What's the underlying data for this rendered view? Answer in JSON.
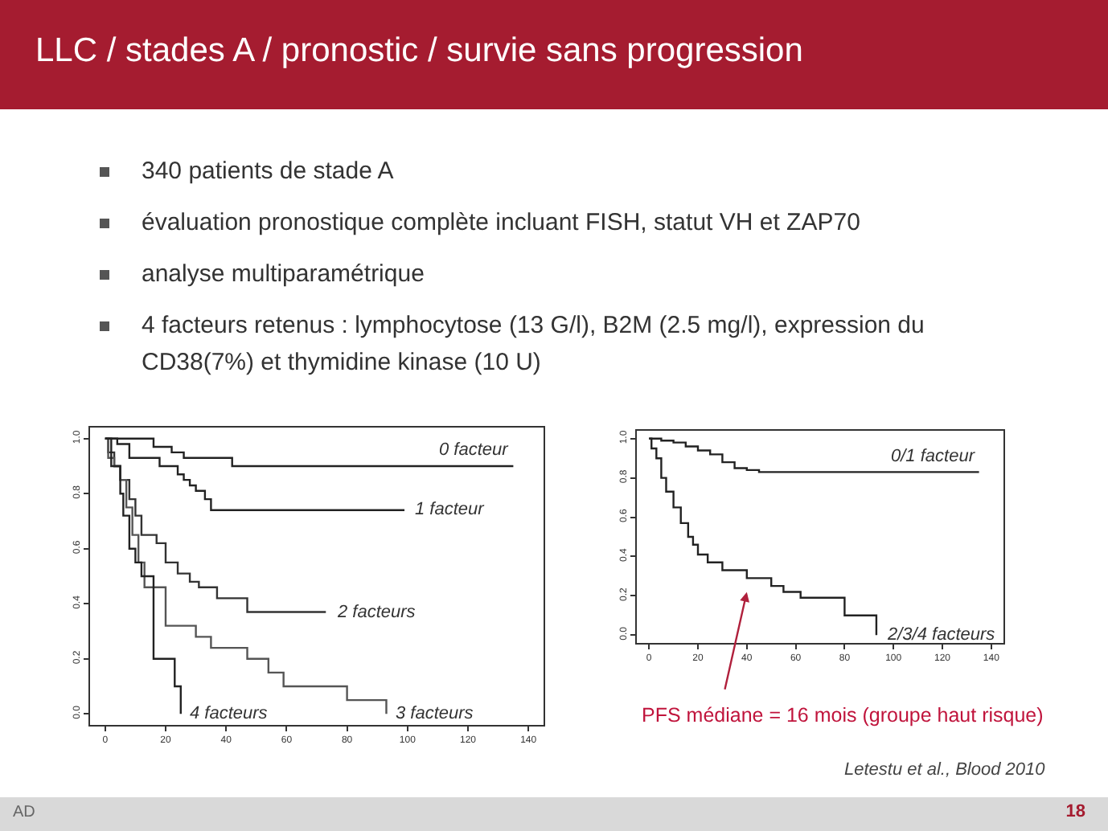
{
  "chart_data": [
    {
      "type": "step",
      "title": "LLC / stades A / pronostic / survie sans progression",
      "annotations": [
        "340 patients de stade A",
        "évaluation pronostique complète incluant FISH, statut VH et ZAP70",
        "analyse multiparamétrique",
        "4 facteurs retenus : lymphocytose (13 G/l), B2M (2.5 mg/l), expression du CD38(7%) et thymidine kinase (10 U)",
        "AD",
        "18"
      ],
      "xlim": [
        -5,
        145
      ],
      "ylim": [
        -0.04,
        1.04
      ],
      "xticks": [
        0,
        20,
        40,
        60,
        80,
        100,
        120,
        140
      ],
      "yticks": [
        {
          "value": 0,
          "label": "0.0"
        },
        {
          "value": 0.2,
          "label": "0.2"
        },
        {
          "value": 0.4,
          "label": "0.4"
        },
        {
          "value": 0.6,
          "label": "0.6"
        },
        {
          "value": 0.8,
          "label": "0.8"
        },
        {
          "value": 1,
          "label": "1.0"
        }
      ],
      "marker": "none",
      "line_style": "solid",
      "series": [
        {
          "name": "0 facteur",
          "color": "#222222",
          "x": [
            0,
            16,
            22,
            26,
            42,
            135
          ],
          "values": [
            1,
            0.97,
            0.95,
            0.93,
            0.9,
            0.9
          ]
        },
        {
          "name": "1 facteur",
          "color": "#222222",
          "x": [
            0,
            4,
            8,
            18,
            24,
            26,
            28,
            30,
            33,
            35,
            99
          ],
          "values": [
            1,
            0.98,
            0.93,
            0.9,
            0.87,
            0.85,
            0.83,
            0.81,
            0.78,
            0.74,
            0.74
          ]
        },
        {
          "name": "2 facteurs",
          "color": "#333333",
          "x": [
            0,
            1,
            3,
            5,
            8,
            10,
            12,
            17,
            20,
            24,
            28,
            31,
            37,
            47,
            73
          ],
          "values": [
            1,
            0.95,
            0.9,
            0.85,
            0.78,
            0.72,
            0.65,
            0.62,
            0.55,
            0.51,
            0.48,
            0.46,
            0.42,
            0.37,
            0.37
          ]
        },
        {
          "name": "3 facteurs",
          "color": "#555555",
          "x": [
            0,
            1,
            3,
            5,
            7,
            9,
            11,
            13,
            20,
            30,
            35,
            47,
            54,
            59,
            80,
            93
          ],
          "values": [
            1,
            0.93,
            0.9,
            0.85,
            0.75,
            0.65,
            0.55,
            0.46,
            0.32,
            0.28,
            0.24,
            0.2,
            0.15,
            0.1,
            0.05,
            0
          ]
        },
        {
          "name": "4 facteurs",
          "color": "#222222",
          "x": [
            0,
            2,
            5,
            6,
            8,
            10,
            12,
            16,
            23,
            25
          ],
          "values": [
            1,
            0.9,
            0.8,
            0.72,
            0.6,
            0.55,
            0.5,
            0.2,
            0.1,
            0
          ]
        }
      ]
    },
    {
      "type": "step",
      "annotations": [
        "PFS médiane = 16 mois (groupe haut risque)",
        "Letestu et al., Blood 2010"
      ],
      "xlim": [
        -5,
        145
      ],
      "ylim": [
        -0.04,
        1.04
      ],
      "xticks": [
        0,
        20,
        40,
        60,
        80,
        100,
        120,
        140
      ],
      "yticks": [
        {
          "value": 0,
          "label": "0.0"
        },
        {
          "value": 0.2,
          "label": "0.2"
        },
        {
          "value": 0.4,
          "label": "0.4"
        },
        {
          "value": 0.6,
          "label": "0.6"
        },
        {
          "value": 0.8,
          "label": "0.8"
        },
        {
          "value": 1,
          "label": "1.0"
        }
      ],
      "marker": "none",
      "line_style": "solid",
      "series": [
        {
          "name": "0/1 facteur",
          "color": "#222222",
          "x": [
            0,
            5,
            10,
            15,
            20,
            25,
            30,
            35,
            40,
            45,
            135
          ],
          "values": [
            1,
            0.99,
            0.98,
            0.96,
            0.94,
            0.92,
            0.88,
            0.85,
            0.84,
            0.83,
            0.83
          ]
        },
        {
          "name": "2/3/4 facteurs",
          "color": "#222222",
          "x": [
            0,
            1,
            3,
            5,
            7,
            10,
            13,
            16,
            18,
            20,
            24,
            30,
            40,
            50,
            55,
            62,
            80,
            93
          ],
          "values": [
            1,
            0.95,
            0.9,
            0.8,
            0.73,
            0.65,
            0.57,
            0.5,
            0.46,
            0.41,
            0.37,
            0.33,
            0.29,
            0.25,
            0.22,
            0.19,
            0.1,
            0
          ]
        }
      ]
    }
  ]
}
